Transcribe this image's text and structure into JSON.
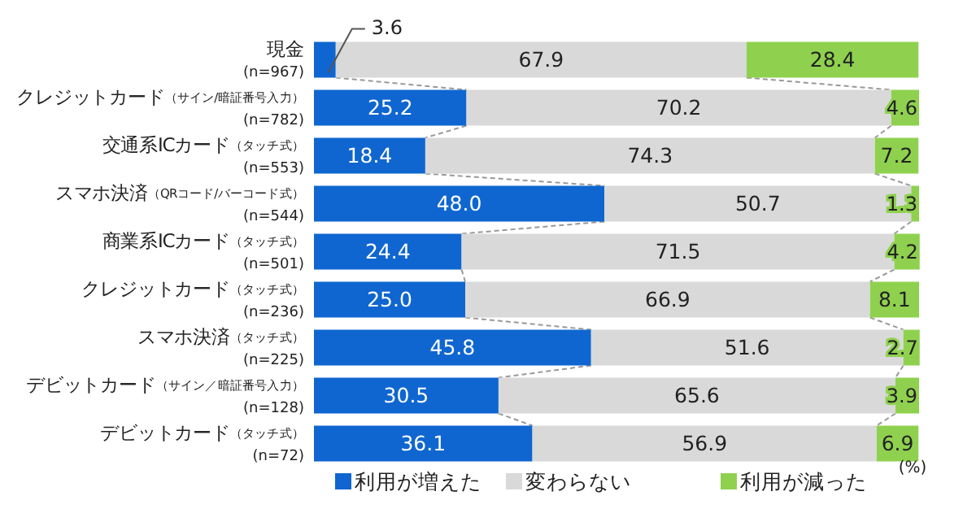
{
  "chart_data": {
    "type": "bar",
    "orientation": "horizontal",
    "stacked": true,
    "categories": [
      "現金\n(n=967)",
      "クレジットカード（サイン/暗証番号入力）\n(n=782)",
      "交通系ICカード（タッチ式）\n(n=553)",
      "スマホ決済（QRコード/バーコード式）\n(n=544)",
      "商業系ICカード（タッチ式）\n(n=501)",
      "クレジットカード（タッチ式）\n(n=236)",
      "スマホ決済（タッチ式）\n(n=225)",
      "デビットカード（サイン／暗証番号入力）\n(n=128)",
      "デビットカード（タッチ式）\n(n=72)"
    ],
    "xlim": [
      0,
      100
    ],
    "series": [
      {
        "name": "利用が増えた",
        "color": "#0f66d0",
        "values": [
          3.6,
          25.2,
          18.4,
          48.0,
          24.4,
          25.0,
          45.8,
          30.5,
          36.1
        ],
        "value_labels": [
          "3.6",
          "25.2",
          "18.4",
          "48.0",
          "24.4",
          "25.0",
          "45.8",
          "30.5",
          "36.1"
        ]
      },
      {
        "name": "変わらない",
        "color": "#d9d9d9",
        "values": [
          67.9,
          70.2,
          74.3,
          50.7,
          71.5,
          66.9,
          51.6,
          65.6,
          56.9
        ],
        "value_labels": [
          "67.9",
          "70.2",
          "74.3",
          "50.7",
          "71.5",
          "66.9",
          "51.6",
          "65.6",
          "56.9"
        ]
      },
      {
        "name": "利用が減った",
        "color": "#8fd14f",
        "values": [
          28.4,
          4.6,
          7.2,
          1.3,
          4.2,
          8.1,
          2.7,
          3.9,
          6.9
        ],
        "value_labels": [
          "28.4",
          "4.6",
          "7.2",
          "1.3",
          "4.2",
          "8.1",
          "2.7",
          "3.9",
          "6.9"
        ]
      }
    ],
    "legend": "bottom",
    "annotations": [
      "(%)"
    ]
  }
}
